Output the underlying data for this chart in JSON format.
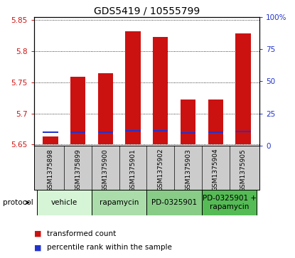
{
  "title": "GDS5419 / 10555799",
  "samples": [
    "GSM1375898",
    "GSM1375899",
    "GSM1375900",
    "GSM1375901",
    "GSM1375902",
    "GSM1375903",
    "GSM1375904",
    "GSM1375905"
  ],
  "red_bar_top": [
    5.663,
    5.759,
    5.764,
    5.832,
    5.823,
    5.722,
    5.722,
    5.828
  ],
  "blue_marker": [
    5.67,
    5.67,
    5.67,
    5.672,
    5.672,
    5.669,
    5.67,
    5.671
  ],
  "base": 5.65,
  "ylim": [
    5.648,
    5.855
  ],
  "yticks_left": [
    5.65,
    5.7,
    5.75,
    5.8,
    5.85
  ],
  "ytick_labels_left": [
    "5.65",
    "5.7",
    "5.75",
    "5.8",
    "5.85"
  ],
  "yticks_right_pct": [
    0,
    25,
    50,
    75,
    100
  ],
  "ytick_labels_right": [
    "0",
    "25",
    "50",
    "75",
    "100%"
  ],
  "protocols": [
    {
      "label": "vehicle",
      "start": 0,
      "end": 2
    },
    {
      "label": "rapamycin",
      "start": 2,
      "end": 4
    },
    {
      "label": "PD-0325901",
      "start": 4,
      "end": 6
    },
    {
      "label": "PD-0325901 +\nrapamycin",
      "start": 6,
      "end": 8
    }
  ],
  "proto_colors": [
    "#d6f5d6",
    "#aaddaa",
    "#88cc88",
    "#55bb55"
  ],
  "bar_color": "#cc1111",
  "blue_color": "#2233cc",
  "bar_width": 0.55,
  "label_red": "transformed count",
  "label_blue": "percentile rank within the sample",
  "protocol_label": "protocol",
  "bg_sample_color": "#cccccc",
  "title_fontsize": 10,
  "tick_fontsize": 7.5,
  "sample_fontsize": 6.5,
  "protocol_fontsize": 7.5,
  "legend_fontsize": 7.5
}
